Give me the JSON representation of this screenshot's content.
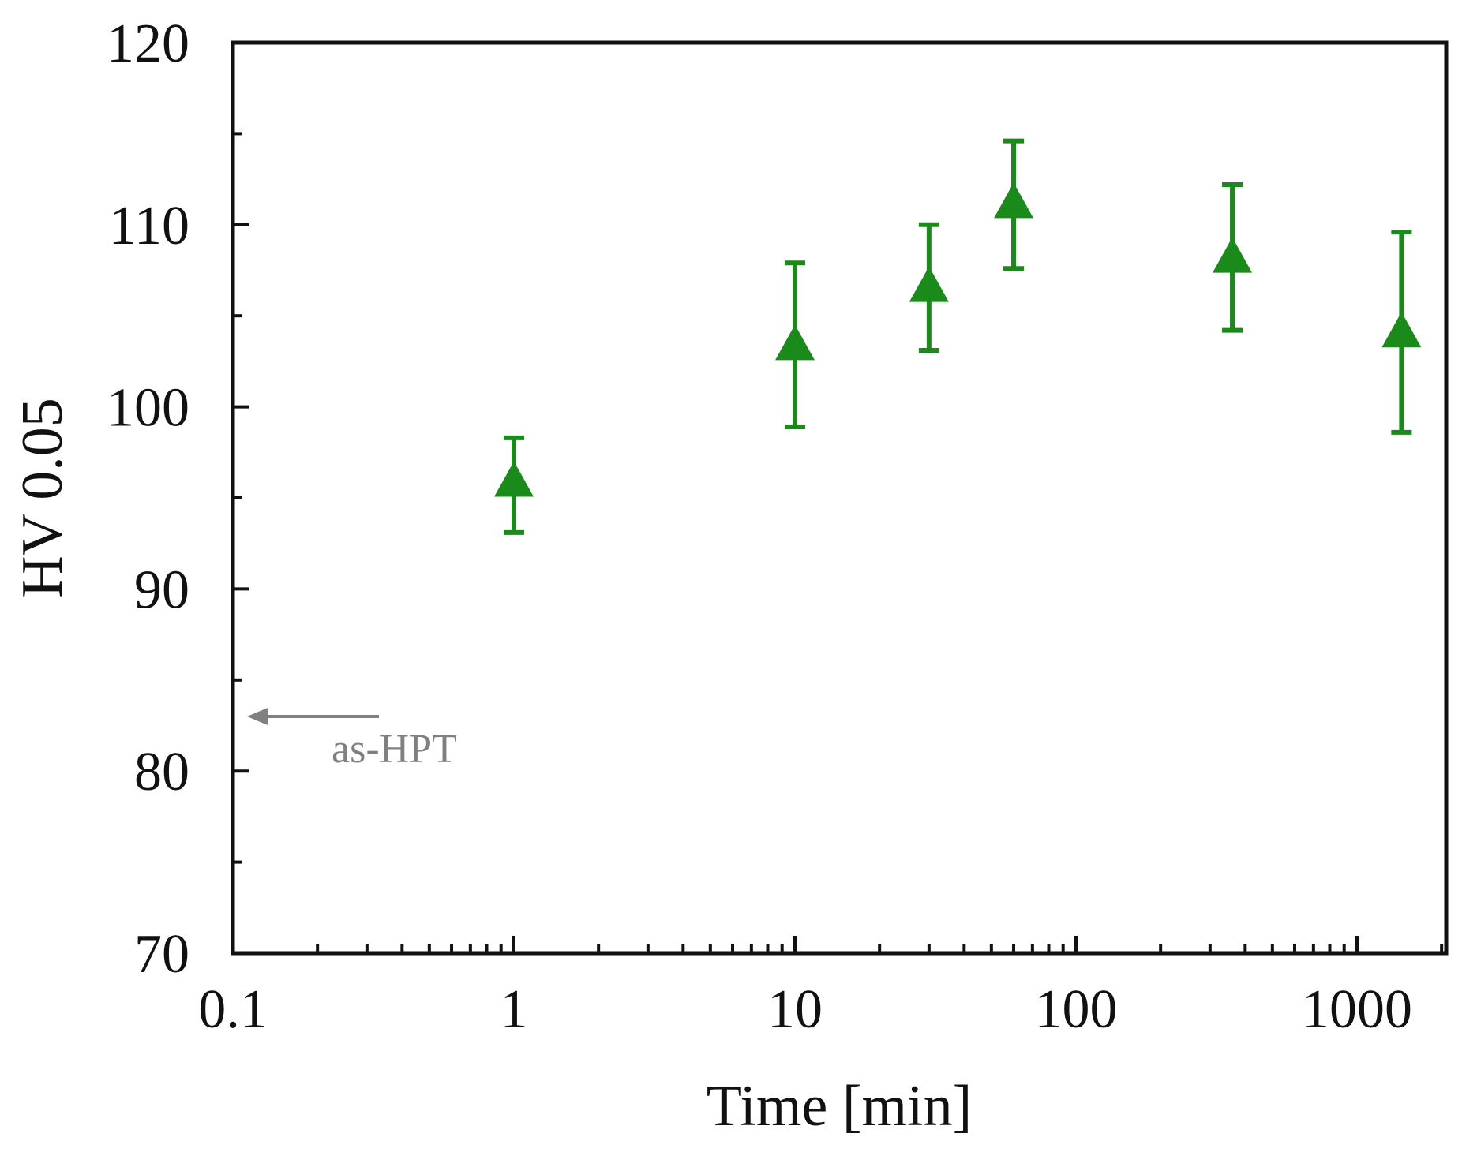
{
  "chart_data": {
    "type": "scatter",
    "title": "",
    "xlabel": "Time [min]",
    "ylabel": "HV 0.05",
    "xscale": "log",
    "xlim": [
      0.1,
      2000
    ],
    "ylim": [
      70,
      120
    ],
    "x_tick_labels": [
      "0.1",
      "1",
      "10",
      "100",
      "1000"
    ],
    "y_tick_labels": [
      "70",
      "80",
      "90",
      "100",
      "110",
      "120"
    ],
    "grid": false,
    "legend": "none",
    "marker": "triangle-up",
    "series": [
      {
        "color": "#1a8a1a",
        "points": [
          {
            "x": 1,
            "y": 95.8,
            "err_low": 2.7,
            "err_high": 2.5
          },
          {
            "x": 10,
            "y": 103.3,
            "err_low": 4.4,
            "err_high": 4.6
          },
          {
            "x": 30,
            "y": 106.5,
            "err_low": 3.4,
            "err_high": 3.5
          },
          {
            "x": 60,
            "y": 111.1,
            "err_low": 3.5,
            "err_high": 3.5
          },
          {
            "x": 360,
            "y": 108.1,
            "err_low": 3.9,
            "err_high": 4.1
          },
          {
            "x": 1440,
            "y": 104.0,
            "err_low": 5.4,
            "err_high": 5.6
          }
        ]
      }
    ],
    "annotations": [
      {
        "text": "as-HPT",
        "x": 0.1,
        "y": 83,
        "color": "#808080",
        "arrow": "left"
      }
    ]
  }
}
